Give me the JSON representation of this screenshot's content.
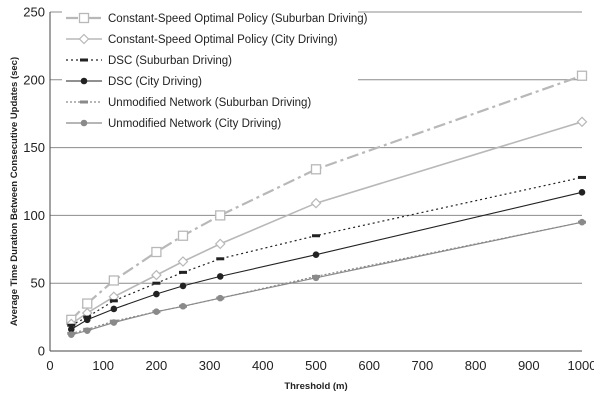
{
  "chart_data": {
    "type": "line",
    "title": "",
    "xlabel": "Threshold (m)",
    "ylabel": "Average Time Duration Between Consecutive Updates (sec)",
    "xlim": [
      0,
      1000
    ],
    "ylim": [
      0,
      250
    ],
    "xticks": [
      0,
      100,
      200,
      300,
      400,
      500,
      600,
      700,
      800,
      900,
      1000
    ],
    "yticks": [
      0,
      50,
      100,
      150,
      200,
      250
    ],
    "grid": "horizontal",
    "legend_position": "top-left",
    "series": [
      {
        "name": "Constant-Speed Optimal Policy (Suburban Driving)",
        "color": "#b8b8b8",
        "dash": "12,4,3,4",
        "width": 2.2,
        "marker": "square-open",
        "x": [
          40,
          70,
          120,
          200,
          250,
          320,
          500,
          1000
        ],
        "y": [
          23,
          35,
          52,
          73,
          85,
          100,
          134,
          203
        ]
      },
      {
        "name": "Constant-Speed Optimal Policy (City Driving)",
        "color": "#b8b8b8",
        "dash": "",
        "width": 1.6,
        "marker": "diamond-open",
        "x": [
          40,
          70,
          120,
          200,
          250,
          320,
          500,
          1000
        ],
        "y": [
          20,
          28,
          40,
          56,
          66,
          79,
          109,
          169
        ]
      },
      {
        "name": "DSC (Suburban  Driving)",
        "color": "#222222",
        "dash": "2,3",
        "width": 1.2,
        "marker": "dash",
        "x": [
          40,
          70,
          120,
          200,
          250,
          320,
          500,
          1000
        ],
        "y": [
          19,
          25,
          37,
          50,
          58,
          68,
          85,
          128
        ]
      },
      {
        "name": "DSC (City Driving)",
        "color": "#222222",
        "dash": "",
        "width": 1.1,
        "marker": "circle-filled",
        "x": [
          40,
          70,
          120,
          200,
          250,
          320,
          500,
          1000
        ],
        "y": [
          16,
          23,
          31,
          42,
          48,
          55,
          71,
          117
        ]
      },
      {
        "name": "Unmodified  Network (Suburban Driving)",
        "color": "#8a8a8a",
        "dash": "2,2",
        "width": 1.2,
        "marker": "dash",
        "x": [
          40,
          70,
          120,
          200,
          250,
          320,
          500,
          1000
        ],
        "y": [
          13,
          16,
          22,
          29,
          33,
          39,
          55,
          95
        ]
      },
      {
        "name": "Unmodified  Network (City Driving)",
        "color": "#8a8a8a",
        "dash": "",
        "width": 1.2,
        "marker": "circle-filled",
        "x": [
          40,
          70,
          120,
          200,
          250,
          320,
          500,
          1000
        ],
        "y": [
          12,
          15,
          21,
          29,
          33,
          39,
          54,
          95
        ]
      }
    ]
  }
}
